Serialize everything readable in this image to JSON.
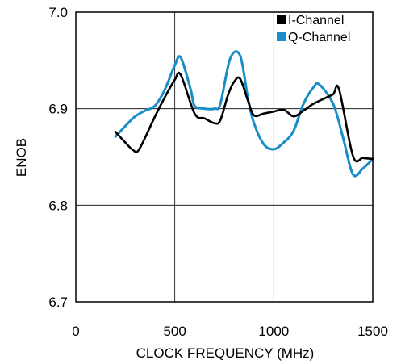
{
  "chart_data": {
    "type": "line",
    "xlabel": "CLOCK FREQUENCY (MHz)",
    "ylabel": "ENOB",
    "xlim": [
      0,
      1500
    ],
    "ylim": [
      6.7,
      7.0
    ],
    "xticks": [
      0,
      500,
      1000,
      1500
    ],
    "xtick_labels": [
      "0",
      "500",
      "1000",
      "1500"
    ],
    "yticks": [
      6.7,
      6.8,
      6.9,
      7.0
    ],
    "ytick_labels": [
      "6.7",
      "6.8",
      "6.9",
      "7.0"
    ],
    "grid": true,
    "legend_position": "top-right",
    "series": [
      {
        "name": "I-Channel",
        "color": "#000000",
        "x": [
          200,
          250,
          290,
          320,
          400,
          450,
          500,
          530,
          600,
          650,
          700,
          730,
          770,
          800,
          830,
          870,
          900,
          950,
          1000,
          1050,
          1100,
          1150,
          1200,
          1250,
          1300,
          1330,
          1400,
          1450,
          1500
        ],
        "y": [
          6.876,
          6.865,
          6.857,
          6.858,
          6.892,
          6.912,
          6.93,
          6.935,
          6.895,
          6.89,
          6.885,
          6.888,
          6.915,
          6.928,
          6.931,
          6.908,
          6.893,
          6.895,
          6.897,
          6.899,
          6.892,
          6.898,
          6.905,
          6.91,
          6.915,
          6.92,
          6.851,
          6.849,
          6.848
        ]
      },
      {
        "name": "Q-Channel",
        "color": "#1a8cc6",
        "x": [
          200,
          250,
          300,
          350,
          400,
          450,
          500,
          530,
          580,
          600,
          650,
          700,
          730,
          780,
          830,
          870,
          900,
          950,
          1000,
          1050,
          1100,
          1150,
          1200,
          1230,
          1300,
          1350,
          1400,
          1450,
          1500
        ],
        "y": [
          6.871,
          6.882,
          6.892,
          6.898,
          6.903,
          6.92,
          6.945,
          6.953,
          6.92,
          6.903,
          6.9,
          6.9,
          6.905,
          6.952,
          6.955,
          6.91,
          6.885,
          6.863,
          6.858,
          6.865,
          6.877,
          6.905,
          6.922,
          6.925,
          6.905,
          6.87,
          6.832,
          6.838,
          6.848
        ]
      }
    ]
  }
}
